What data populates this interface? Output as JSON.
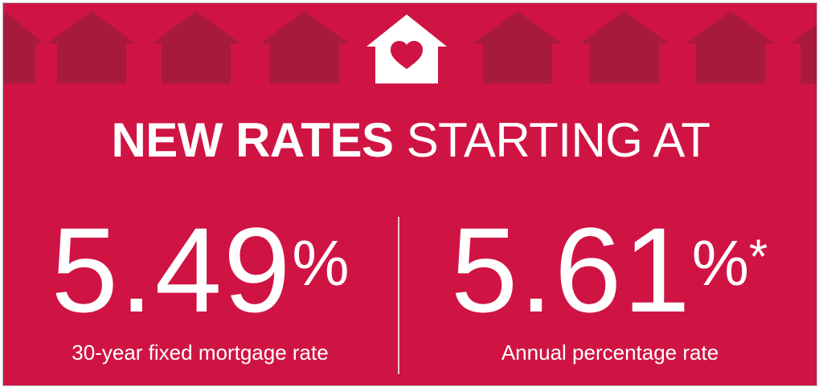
{
  "banner": {
    "background": "#cf1444",
    "house_dark": "#a81a3c",
    "house_light": "#ffffff",
    "heart_color": "#cf1444",
    "icons": [
      "house-icon",
      "heart-house-icon"
    ]
  },
  "headline": {
    "bold": "NEW RATES",
    "light": "STARTING AT"
  },
  "rates": [
    {
      "number": "5.49",
      "percent": "%",
      "mark": "",
      "caption": "30-year fixed mortgage rate"
    },
    {
      "number": "5.61",
      "percent": "%",
      "mark": "*",
      "caption": "Annual percentage rate"
    }
  ]
}
